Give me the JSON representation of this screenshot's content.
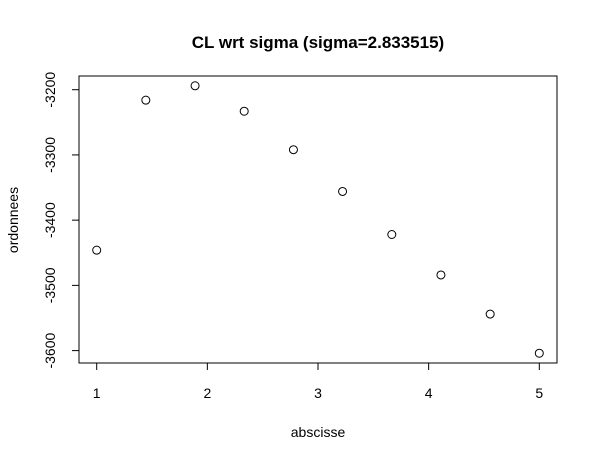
{
  "chart_data": {
    "type": "scatter",
    "title": "CL wrt sigma (sigma=2.833515)",
    "xlabel": "abscisse",
    "ylabel": "ordonnees",
    "x": [
      1.0,
      1.444,
      1.889,
      2.333,
      2.778,
      3.222,
      3.667,
      4.111,
      4.556,
      5.0
    ],
    "y": [
      -3446,
      -3216,
      -3194,
      -3233,
      -3292,
      -3356,
      -3422,
      -3484,
      -3544,
      -3604
    ],
    "xlim": [
      0.84,
      5.16
    ],
    "ylim": [
      -3619,
      -3179
    ],
    "xticks": [
      1,
      2,
      3,
      4,
      5
    ],
    "xtick_labels": [
      "1",
      "2",
      "3",
      "4",
      "5"
    ],
    "yticks": [
      -3600,
      -3500,
      -3400,
      -3300,
      -3200
    ],
    "ytick_labels": [
      "-3600",
      "-3500",
      "-3400",
      "-3300",
      "-3200"
    ],
    "grid": false,
    "legend": "none",
    "marker": "open-circle",
    "colors": {
      "points": "#000000",
      "background": "#ffffff"
    }
  }
}
